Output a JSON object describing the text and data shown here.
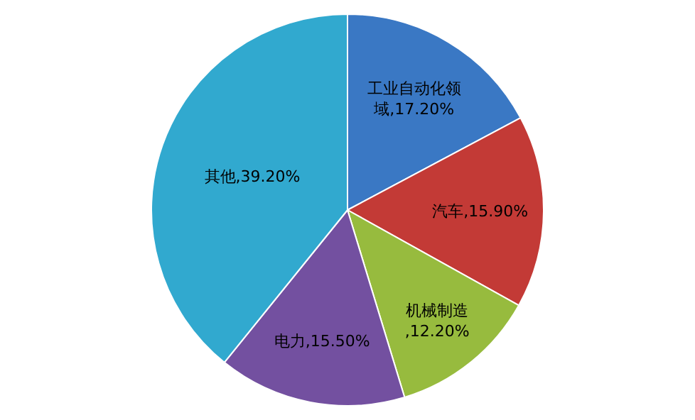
{
  "chart_data": {
    "type": "pie",
    "categories": [
      "工业自动化领域",
      "汽车",
      "机械制造",
      "电力",
      "其他"
    ],
    "values": [
      17.2,
      15.9,
      12.2,
      15.5,
      39.2
    ],
    "value_labels": [
      ",17.20%",
      ",15.90%",
      ",12.20%",
      ",15.50%",
      ",39.20%"
    ],
    "colors": [
      "#3a78c4",
      "#c33a36",
      "#97bb3e",
      "#7350a0",
      "#31a9cf"
    ],
    "legend": false
  }
}
